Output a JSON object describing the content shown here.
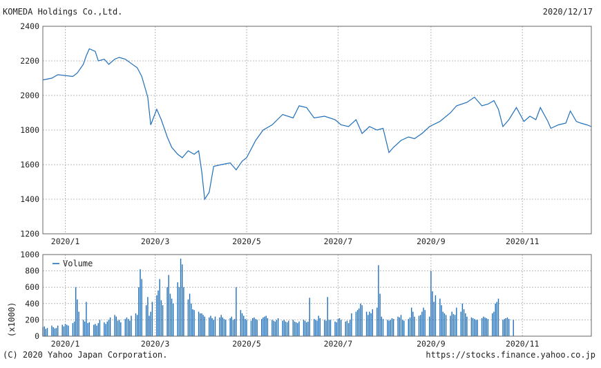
{
  "header": {
    "company": "KOMEDA Holdings Co.,Ltd.",
    "date": "2020/12/17"
  },
  "footer": {
    "copyright": "(C) 2020 Yahoo Japan Corporation.",
    "source_url": "https://stocks.finance.yahoo.co.jp"
  },
  "colors": {
    "line": "#1f6fba",
    "grid": "#b8b8b8",
    "axis": "#666666"
  },
  "chart_data": [
    {
      "type": "line",
      "title": "",
      "x_start": "2019-12-17",
      "x_end": "2020-12-17",
      "ylim": [
        1200,
        2400
      ],
      "y_ticks": [
        1200,
        1400,
        1600,
        1800,
        2000,
        2200,
        2400
      ],
      "x_ticks": [
        {
          "date": "2020-01-01",
          "label": "2020/1"
        },
        {
          "date": "2020-03-01",
          "label": "2020/3"
        },
        {
          "date": "2020-05-01",
          "label": "2020/5"
        },
        {
          "date": "2020-07-01",
          "label": "2020/7"
        },
        {
          "date": "2020-09-01",
          "label": "2020/9"
        },
        {
          "date": "2020-11-01",
          "label": "2020/11"
        }
      ],
      "grid": true,
      "series": [
        {
          "points": [
            [
              "2019-12-17",
              2090
            ],
            [
              "2019-12-23",
              2100
            ],
            [
              "2019-12-27",
              2120
            ],
            [
              "2020-01-06",
              2110
            ],
            [
              "2020-01-09",
              2130
            ],
            [
              "2020-01-13",
              2180
            ],
            [
              "2020-01-15",
              2230
            ],
            [
              "2020-01-17",
              2270
            ],
            [
              "2020-01-21",
              2255
            ],
            [
              "2020-01-23",
              2200
            ],
            [
              "2020-01-27",
              2210
            ],
            [
              "2020-01-30",
              2180
            ],
            [
              "2020-02-03",
              2210
            ],
            [
              "2020-02-06",
              2220
            ],
            [
              "2020-02-10",
              2210
            ],
            [
              "2020-02-14",
              2185
            ],
            [
              "2020-02-18",
              2160
            ],
            [
              "2020-02-21",
              2110
            ],
            [
              "2020-02-25",
              1990
            ],
            [
              "2020-02-27",
              1830
            ],
            [
              "2020-03-02",
              1920
            ],
            [
              "2020-03-05",
              1860
            ],
            [
              "2020-03-09",
              1760
            ],
            [
              "2020-03-12",
              1700
            ],
            [
              "2020-03-16",
              1660
            ],
            [
              "2020-03-19",
              1640
            ],
            [
              "2020-03-23",
              1680
            ],
            [
              "2020-03-27",
              1660
            ],
            [
              "2020-03-30",
              1680
            ],
            [
              "2020-04-01",
              1560
            ],
            [
              "2020-04-03",
              1400
            ],
            [
              "2020-04-06",
              1440
            ],
            [
              "2020-04-09",
              1590
            ],
            [
              "2020-04-14",
              1600
            ],
            [
              "2020-04-20",
              1610
            ],
            [
              "2020-04-24",
              1570
            ],
            [
              "2020-04-28",
              1620
            ],
            [
              "2020-05-01",
              1640
            ],
            [
              "2020-05-07",
              1740
            ],
            [
              "2020-05-12",
              1800
            ],
            [
              "2020-05-18",
              1830
            ],
            [
              "2020-05-25",
              1890
            ],
            [
              "2020-06-01",
              1870
            ],
            [
              "2020-06-05",
              1940
            ],
            [
              "2020-06-10",
              1930
            ],
            [
              "2020-06-15",
              1870
            ],
            [
              "2020-06-22",
              1880
            ],
            [
              "2020-06-29",
              1860
            ],
            [
              "2020-07-03",
              1830
            ],
            [
              "2020-07-08",
              1820
            ],
            [
              "2020-07-13",
              1860
            ],
            [
              "2020-07-17",
              1780
            ],
            [
              "2020-07-22",
              1820
            ],
            [
              "2020-07-27",
              1800
            ],
            [
              "2020-07-31",
              1810
            ],
            [
              "2020-08-04",
              1670
            ],
            [
              "2020-08-07",
              1700
            ],
            [
              "2020-08-12",
              1740
            ],
            [
              "2020-08-17",
              1760
            ],
            [
              "2020-08-21",
              1750
            ],
            [
              "2020-08-26",
              1780
            ],
            [
              "2020-08-31",
              1820
            ],
            [
              "2020-09-07",
              1850
            ],
            [
              "2020-09-14",
              1900
            ],
            [
              "2020-09-18",
              1940
            ],
            [
              "2020-09-25",
              1960
            ],
            [
              "2020-09-30",
              1990
            ],
            [
              "2020-10-05",
              1940
            ],
            [
              "2020-10-09",
              1950
            ],
            [
              "2020-10-13",
              1970
            ],
            [
              "2020-10-16",
              1920
            ],
            [
              "2020-10-19",
              1820
            ],
            [
              "2020-10-23",
              1860
            ],
            [
              "2020-10-28",
              1930
            ],
            [
              "2020-11-02",
              1850
            ],
            [
              "2020-11-06",
              1880
            ],
            [
              "2020-11-10",
              1860
            ],
            [
              "2020-11-13",
              1930
            ],
            [
              "2020-11-18",
              1850
            ],
            [
              "2020-11-20",
              1810
            ],
            [
              "2020-11-25",
              1830
            ],
            [
              "2020-11-30",
              1840
            ],
            [
              "2020-12-03",
              1910
            ],
            [
              "2020-12-07",
              1850
            ],
            [
              "2020-12-10",
              1840
            ],
            [
              "2020-12-14",
              1830
            ],
            [
              "2020-12-17",
              1820
            ]
          ]
        }
      ]
    },
    {
      "type": "bar",
      "title": "",
      "ylabel": "(x1000)",
      "ylim": [
        0,
        1000
      ],
      "y_ticks": [
        0,
        200,
        400,
        600,
        800,
        1000
      ],
      "x_ticks": [
        {
          "date": "2020-01-01",
          "label": "2020/1"
        },
        {
          "date": "2020-03-01",
          "label": "2020/3"
        },
        {
          "date": "2020-05-01",
          "label": "2020/5"
        },
        {
          "date": "2020-07-01",
          "label": "2020/7"
        },
        {
          "date": "2020-09-01",
          "label": "2020/9"
        },
        {
          "date": "2020-11-01",
          "label": "2020/11"
        }
      ],
      "grid": true,
      "legend": "top-left",
      "series": [
        {
          "name": "Volume",
          "start": "2019-12-17",
          "values": [
            110,
            120,
            90,
            100,
            130,
            110,
            95,
            100,
            130,
            140,
            120,
            150,
            140,
            130,
            160,
            180,
            600,
            450,
            300,
            200,
            180,
            420,
            160,
            170,
            140,
            150,
            130,
            160,
            200,
            170,
            150,
            180,
            200,
            230,
            260,
            240,
            190,
            200,
            170,
            210,
            230,
            210,
            190,
            250,
            280,
            260,
            600,
            820,
            700,
            380,
            480,
            250,
            300,
            420,
            500,
            560,
            700,
            440,
            380,
            600,
            750,
            520,
            460,
            400,
            660,
            600,
            950,
            880,
            600,
            450,
            520,
            400,
            330,
            320,
            300,
            280,
            280,
            260,
            240,
            230,
            250,
            220,
            200,
            240,
            230,
            260,
            230,
            210,
            200,
            220,
            240,
            200,
            210,
            600,
            320,
            280,
            250,
            210,
            200,
            190,
            220,
            230,
            210,
            200,
            210,
            230,
            240,
            250,
            220,
            200,
            190,
            180,
            200,
            220,
            190,
            200,
            180,
            170,
            190,
            200,
            180,
            170,
            160,
            180,
            200,
            190,
            170,
            180,
            470,
            210,
            200,
            190,
            250,
            220,
            200,
            190,
            480,
            200,
            200,
            180,
            170,
            210,
            220,
            200,
            180,
            190,
            160,
            200,
            280,
            300,
            320,
            340,
            400,
            380,
            300,
            260,
            300,
            280,
            330,
            350,
            870,
            520,
            240,
            210,
            200,
            190,
            200,
            220,
            210,
            240,
            230,
            260,
            200,
            190,
            210,
            230,
            350,
            300,
            240,
            250,
            260,
            300,
            350,
            320,
            240,
            800,
            550,
            420,
            500,
            460,
            380,
            300,
            280,
            260,
            250,
            300,
            270,
            260,
            350,
            300,
            400,
            330,
            280,
            240,
            230,
            220,
            210,
            200,
            200,
            220,
            240,
            230,
            220,
            210,
            280,
            300,
            400,
            420,
            460,
            200,
            210,
            220,
            230,
            210,
            200
          ]
        }
      ]
    }
  ]
}
